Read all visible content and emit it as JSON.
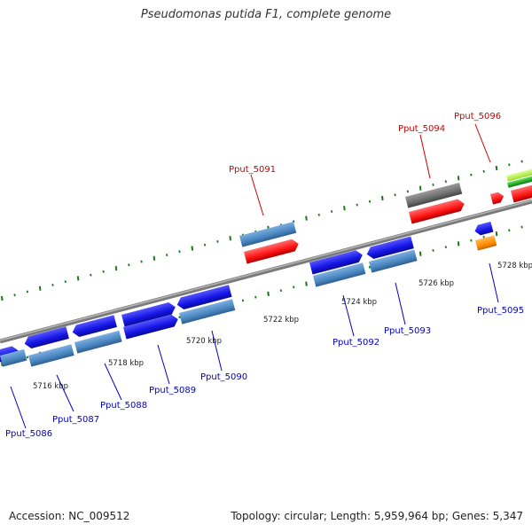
{
  "title": "Pseudomonas putida F1, complete genome",
  "footer": {
    "accession": "Accession: NC_009512",
    "summary": "Topology: circular; Length: 5,959,964 bp; Genes: 5,347"
  },
  "colors": {
    "background": "#ffffff",
    "backbone": "#8c8c8c",
    "tick": "#1a7a1a",
    "label_red": "#cc0000",
    "label_blue": "#0000cc",
    "blue_gene": "#1515e6",
    "steel_gene": "#4a86c0",
    "red_gene": "#ff1414",
    "gray_gene": "#6e6e6e",
    "orange_gene": "#ff8c00",
    "green_gene": "#22aa22",
    "lime_gene": "#b8ff40"
  },
  "scale_labels": [
    "5716 kbp",
    "5718 kbp",
    "5720 kbp",
    "5722 kbp",
    "5724 kbp",
    "5726 kbp",
    "5728 kbp"
  ],
  "gene_labels_red": [
    "Pput_5091",
    "Pput_5094",
    "Pput_5096"
  ],
  "gene_labels_blue": [
    "Pput_5086",
    "Pput_5087",
    "Pput_5088",
    "Pput_5089",
    "Pput_5090",
    "Pput_5092",
    "Pput_5093",
    "Pput_5095"
  ]
}
